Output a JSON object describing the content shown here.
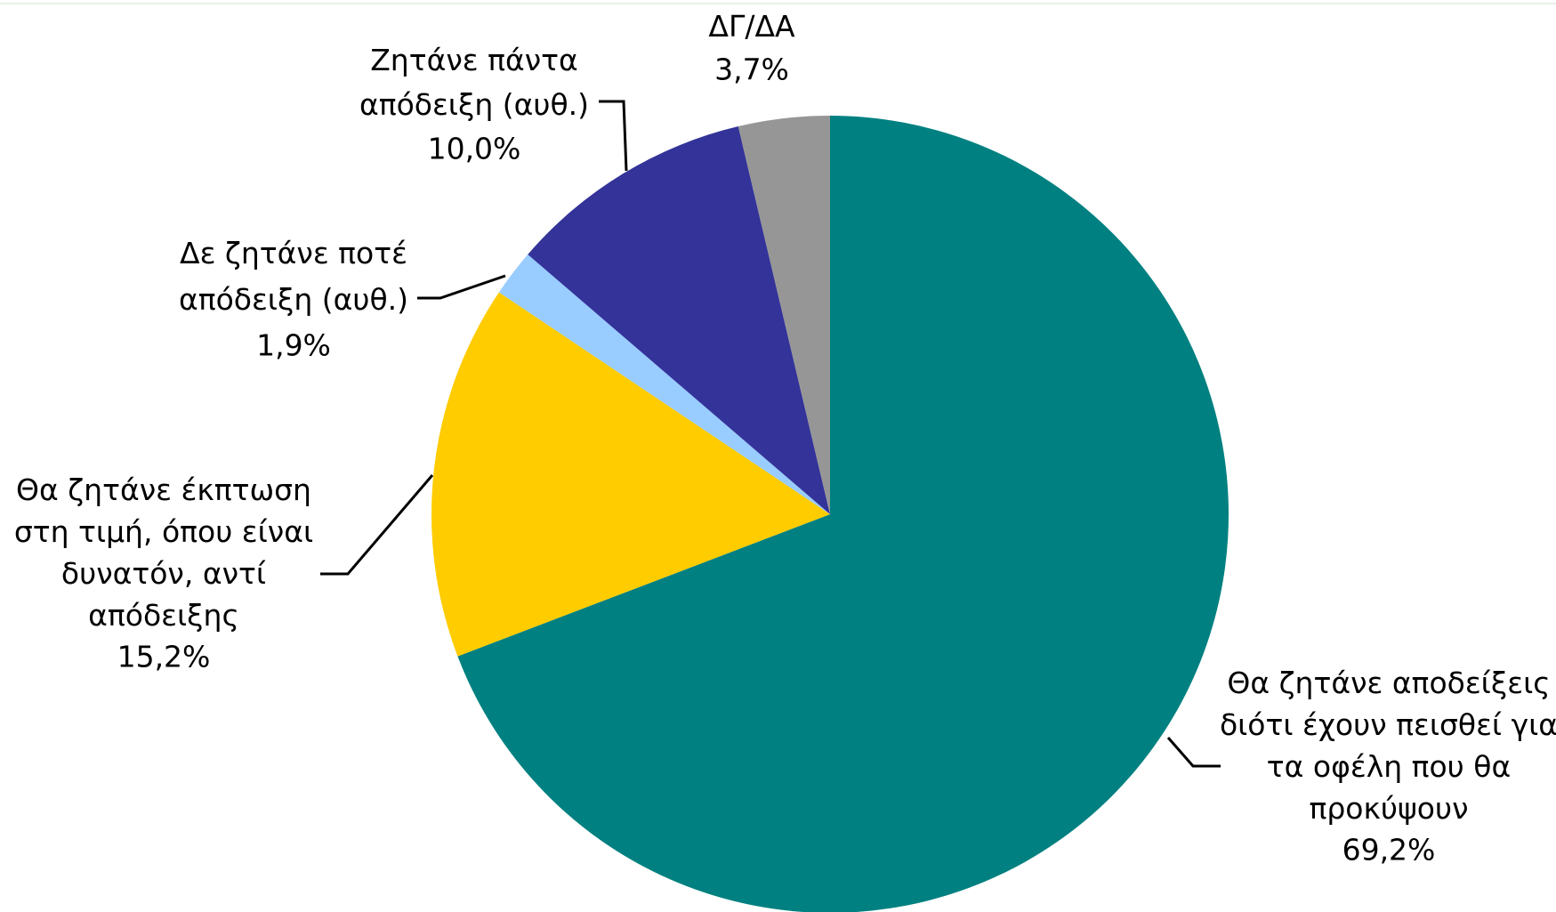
{
  "chart_data": {
    "type": "pie",
    "categories": [
      "Θα ζητάνε αποδείξεις\nδιότι έχουν πεισθεί για\nτα οφέλη που θα\nπροκύψουν",
      "Θα ζητάνε έκπτωση\nστη τιμή, όπου είναι\nδυνατόν, αντί\nαπόδειξης",
      "Δε ζητάνε ποτέ\nαπόδειξη (αυθ.)",
      "Ζητάνε πάντα\nαπόδειξη (αυθ.)",
      "ΔΓ/ΔΑ"
    ],
    "values": [
      69.2,
      15.2,
      1.9,
      10.0,
      3.7
    ],
    "value_labels": [
      "69,2%",
      "15,2%",
      "1,9%",
      "10,0%",
      "3,7%"
    ],
    "colors": [
      "#008080",
      "#ffcc00",
      "#99ccff",
      "#333399",
      "#969696"
    ]
  }
}
